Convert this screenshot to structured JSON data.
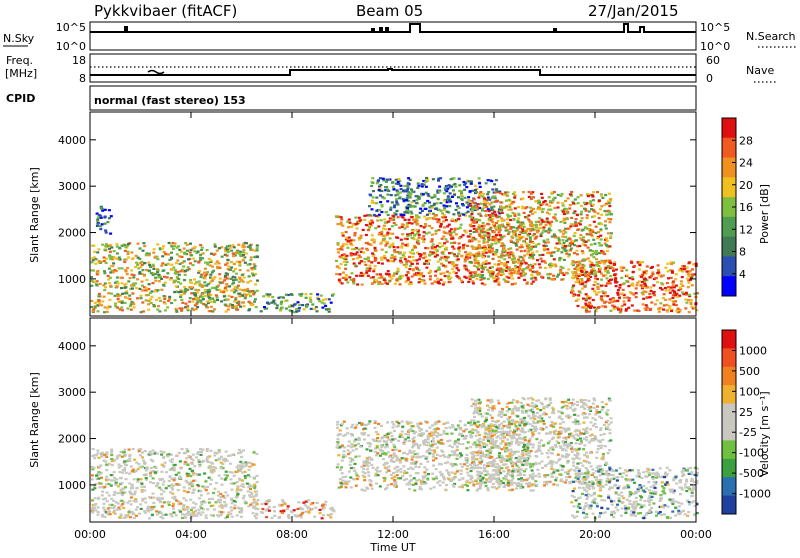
{
  "header": {
    "station": "Pykkvibaer (fitACF)",
    "beam": "Beam 05",
    "date": "27/Jan/2015"
  },
  "panels": {
    "nsky_label": "N.Sky",
    "nsky_ticks": [
      "10^5",
      "10^0"
    ],
    "nsearch_label": "N.Search",
    "nsearch_ticks": [
      "10^5",
      "10^0"
    ],
    "freq_label_1": "Freq.",
    "freq_label_2": "[MHz]",
    "freq_ticks": [
      "18",
      "8"
    ],
    "nave_label": "Nave",
    "nave_ticks": [
      "60",
      "0"
    ],
    "cpid_label": "CPID",
    "cpid_text": "normal (fast stereo) 153"
  },
  "chart_data": [
    {
      "type": "heatmap",
      "name": "power",
      "ylabel": "Slant Range [km]",
      "yticks": [
        "4000",
        "3000",
        "2000",
        "1000"
      ],
      "ylim": [
        200,
        4600
      ],
      "colorbar_label": "Power [dB]",
      "colorbar_ticks": [
        "28",
        "24",
        "20",
        "16",
        "12",
        "8",
        "4"
      ],
      "colorbar_range": [
        0,
        30
      ],
      "colors": [
        "#0000ff",
        "#2a4fb0",
        "#3f7a55",
        "#4f9d4f",
        "#7fbf3f",
        "#f0c020",
        "#f09020",
        "#f05a20",
        "#e01010"
      ],
      "regions": [
        {
          "t0": 0.0,
          "t1": 6.6,
          "r0": 300,
          "r1": 1800,
          "level": 0.55
        },
        {
          "t0": 0.2,
          "t1": 0.8,
          "r0": 2000,
          "r1": 2600,
          "level": 0.2
        },
        {
          "t0": 6.7,
          "t1": 9.6,
          "r0": 300,
          "r1": 700,
          "level": 0.35
        },
        {
          "t0": 9.7,
          "t1": 17.5,
          "r0": 900,
          "r1": 2400,
          "level": 0.75
        },
        {
          "t0": 11.0,
          "t1": 16.2,
          "r0": 2400,
          "r1": 3200,
          "level": 0.3
        },
        {
          "t0": 15.0,
          "t1": 20.6,
          "r0": 1000,
          "r1": 2900,
          "level": 0.65
        },
        {
          "t0": 19.0,
          "t1": 24.0,
          "r0": 300,
          "r1": 1400,
          "level": 0.8
        }
      ]
    },
    {
      "type": "heatmap",
      "name": "velocity",
      "xlabel": "Time UT",
      "xticks": [
        "00:00",
        "04:00",
        "08:00",
        "12:00",
        "16:00",
        "20:00",
        "00:00"
      ],
      "xlim": [
        0,
        24
      ],
      "ylabel": "Slant Range [km]",
      "yticks": [
        "4000",
        "3000",
        "2000",
        "1000"
      ],
      "ylim": [
        200,
        4600
      ],
      "colorbar_label": "Velocity [m s⁻¹]",
      "colorbar_ticks": [
        "1000",
        "500",
        "100",
        "25",
        "-25",
        "-100",
        "-500",
        "-1000"
      ],
      "colorbar_range": [
        -1000,
        1000
      ],
      "colors": [
        "#2040a0",
        "#2a70b0",
        "#3aa040",
        "#70c040",
        "#c8c8c0",
        "#c8c8c0",
        "#f0b030",
        "#f08020",
        "#f05020",
        "#e01010"
      ],
      "regions": [
        {
          "t0": 0.0,
          "t1": 6.6,
          "r0": 300,
          "r1": 1800,
          "level": 0.5
        },
        {
          "t0": 6.7,
          "t1": 9.6,
          "r0": 300,
          "r1": 700,
          "level": 0.7
        },
        {
          "t0": 9.7,
          "t1": 17.5,
          "r0": 900,
          "r1": 2400,
          "level": 0.5
        },
        {
          "t0": 15.0,
          "t1": 20.6,
          "r0": 1000,
          "r1": 2900,
          "level": 0.5
        },
        {
          "t0": 19.0,
          "t1": 24.0,
          "r0": 300,
          "r1": 1400,
          "level": 0.35
        }
      ]
    }
  ]
}
